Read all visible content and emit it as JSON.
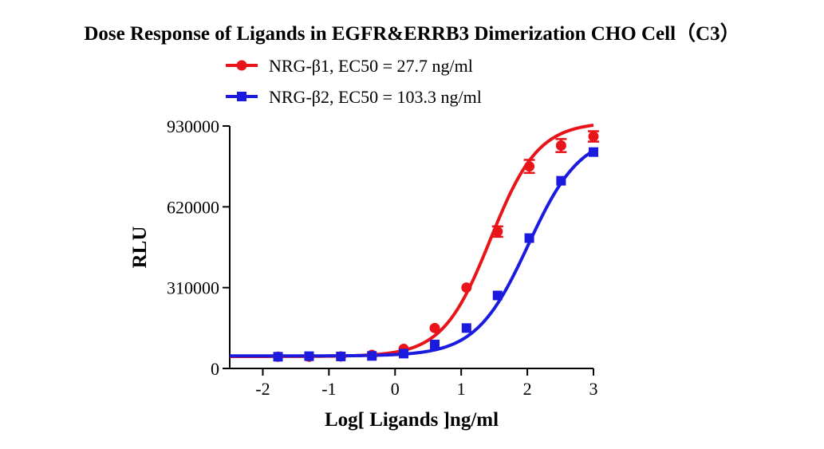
{
  "chart_data": {
    "type": "scatter",
    "title": "Dose Response of Ligands in  EGFR&ERRB3 Dimerization CHO Cell（C3）",
    "xlabel": "Log[ Ligands ]ng/ml",
    "ylabel": "RLU",
    "xlim": [
      -2.5,
      3
    ],
    "ylim": [
      0,
      930000
    ],
    "xticks": [
      -2,
      -1,
      0,
      1,
      2,
      3
    ],
    "xtick_labels": [
      "-2",
      "-1",
      "0",
      "1",
      "2",
      "3"
    ],
    "yticks": [
      0,
      310000,
      620000,
      930000
    ],
    "ytick_labels": [
      "0",
      "310000",
      "620000",
      "930000"
    ],
    "legend_position": "top",
    "grid": false,
    "series": [
      {
        "name": "NRG-β1, EC50 = 27.7 ng/ml",
        "color": "#e8141a",
        "marker": "circle",
        "x": [
          -1.77,
          -1.3,
          -0.82,
          -0.35,
          0.13,
          0.6,
          1.08,
          1.55,
          2.03,
          2.51,
          3.0
        ],
        "y": [
          45000,
          45000,
          46000,
          52000,
          75000,
          155000,
          310000,
          525000,
          775000,
          855000,
          890000
        ],
        "error": [
          0,
          0,
          0,
          0,
          0,
          0,
          0,
          20000,
          25000,
          25000,
          20000
        ],
        "fit": {
          "bottom": 46000,
          "top": 945000,
          "logEC50": 1.442,
          "hill": 1.2
        }
      },
      {
        "name": "NRG-β2, EC50 = 103.3 ng/ml",
        "color": "#1b1bdf",
        "marker": "square",
        "x": [
          -1.77,
          -1.3,
          -0.82,
          -0.35,
          0.13,
          0.6,
          1.08,
          1.55,
          2.03,
          2.51,
          3.0
        ],
        "y": [
          45000,
          47000,
          46000,
          48000,
          57000,
          92000,
          155000,
          280000,
          500000,
          720000,
          830000
        ],
        "error": [
          0,
          0,
          0,
          0,
          0,
          0,
          0,
          0,
          0,
          0,
          0
        ],
        "fit": {
          "bottom": 48000,
          "top": 900000,
          "logEC50": 2.014,
          "hill": 1.1
        }
      }
    ]
  }
}
